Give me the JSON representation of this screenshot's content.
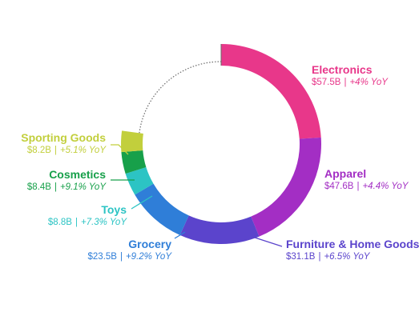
{
  "chart_data": {
    "type": "donut",
    "unit": "$B",
    "total_ring_value": 240,
    "segments": [
      {
        "name": "Electronics",
        "value": 57.5,
        "value_label": "$57.5B",
        "yoy": "+4% YoY",
        "color": "#e8378a"
      },
      {
        "name": "Apparel",
        "value": 47.6,
        "value_label": "$47.6B",
        "yoy": "+4.4% YoY",
        "color": "#a32ec4"
      },
      {
        "name": "Furniture & Home Goods",
        "value": 31.1,
        "value_label": "$31.1B",
        "yoy": "+6.5% YoY",
        "color": "#5b44cc"
      },
      {
        "name": "Grocery",
        "value": 23.5,
        "value_label": "$23.5B",
        "yoy": "+9.2% YoY",
        "color": "#2f7ed8"
      },
      {
        "name": "Toys",
        "value": 8.8,
        "value_label": "$8.8B",
        "yoy": "+7.3% YoY",
        "color": "#2cc4c4"
      },
      {
        "name": "Cosmetics",
        "value": 8.4,
        "value_label": "$8.4B",
        "yoy": "+9.1% YoY",
        "color": "#17a04a"
      },
      {
        "name": "Sporting Goods",
        "value": 8.2,
        "value_label": "$8.2B",
        "yoy": "+5.1% YoY",
        "color": "#c2cf3c"
      }
    ],
    "remainder_style": "dotted-outline"
  }
}
